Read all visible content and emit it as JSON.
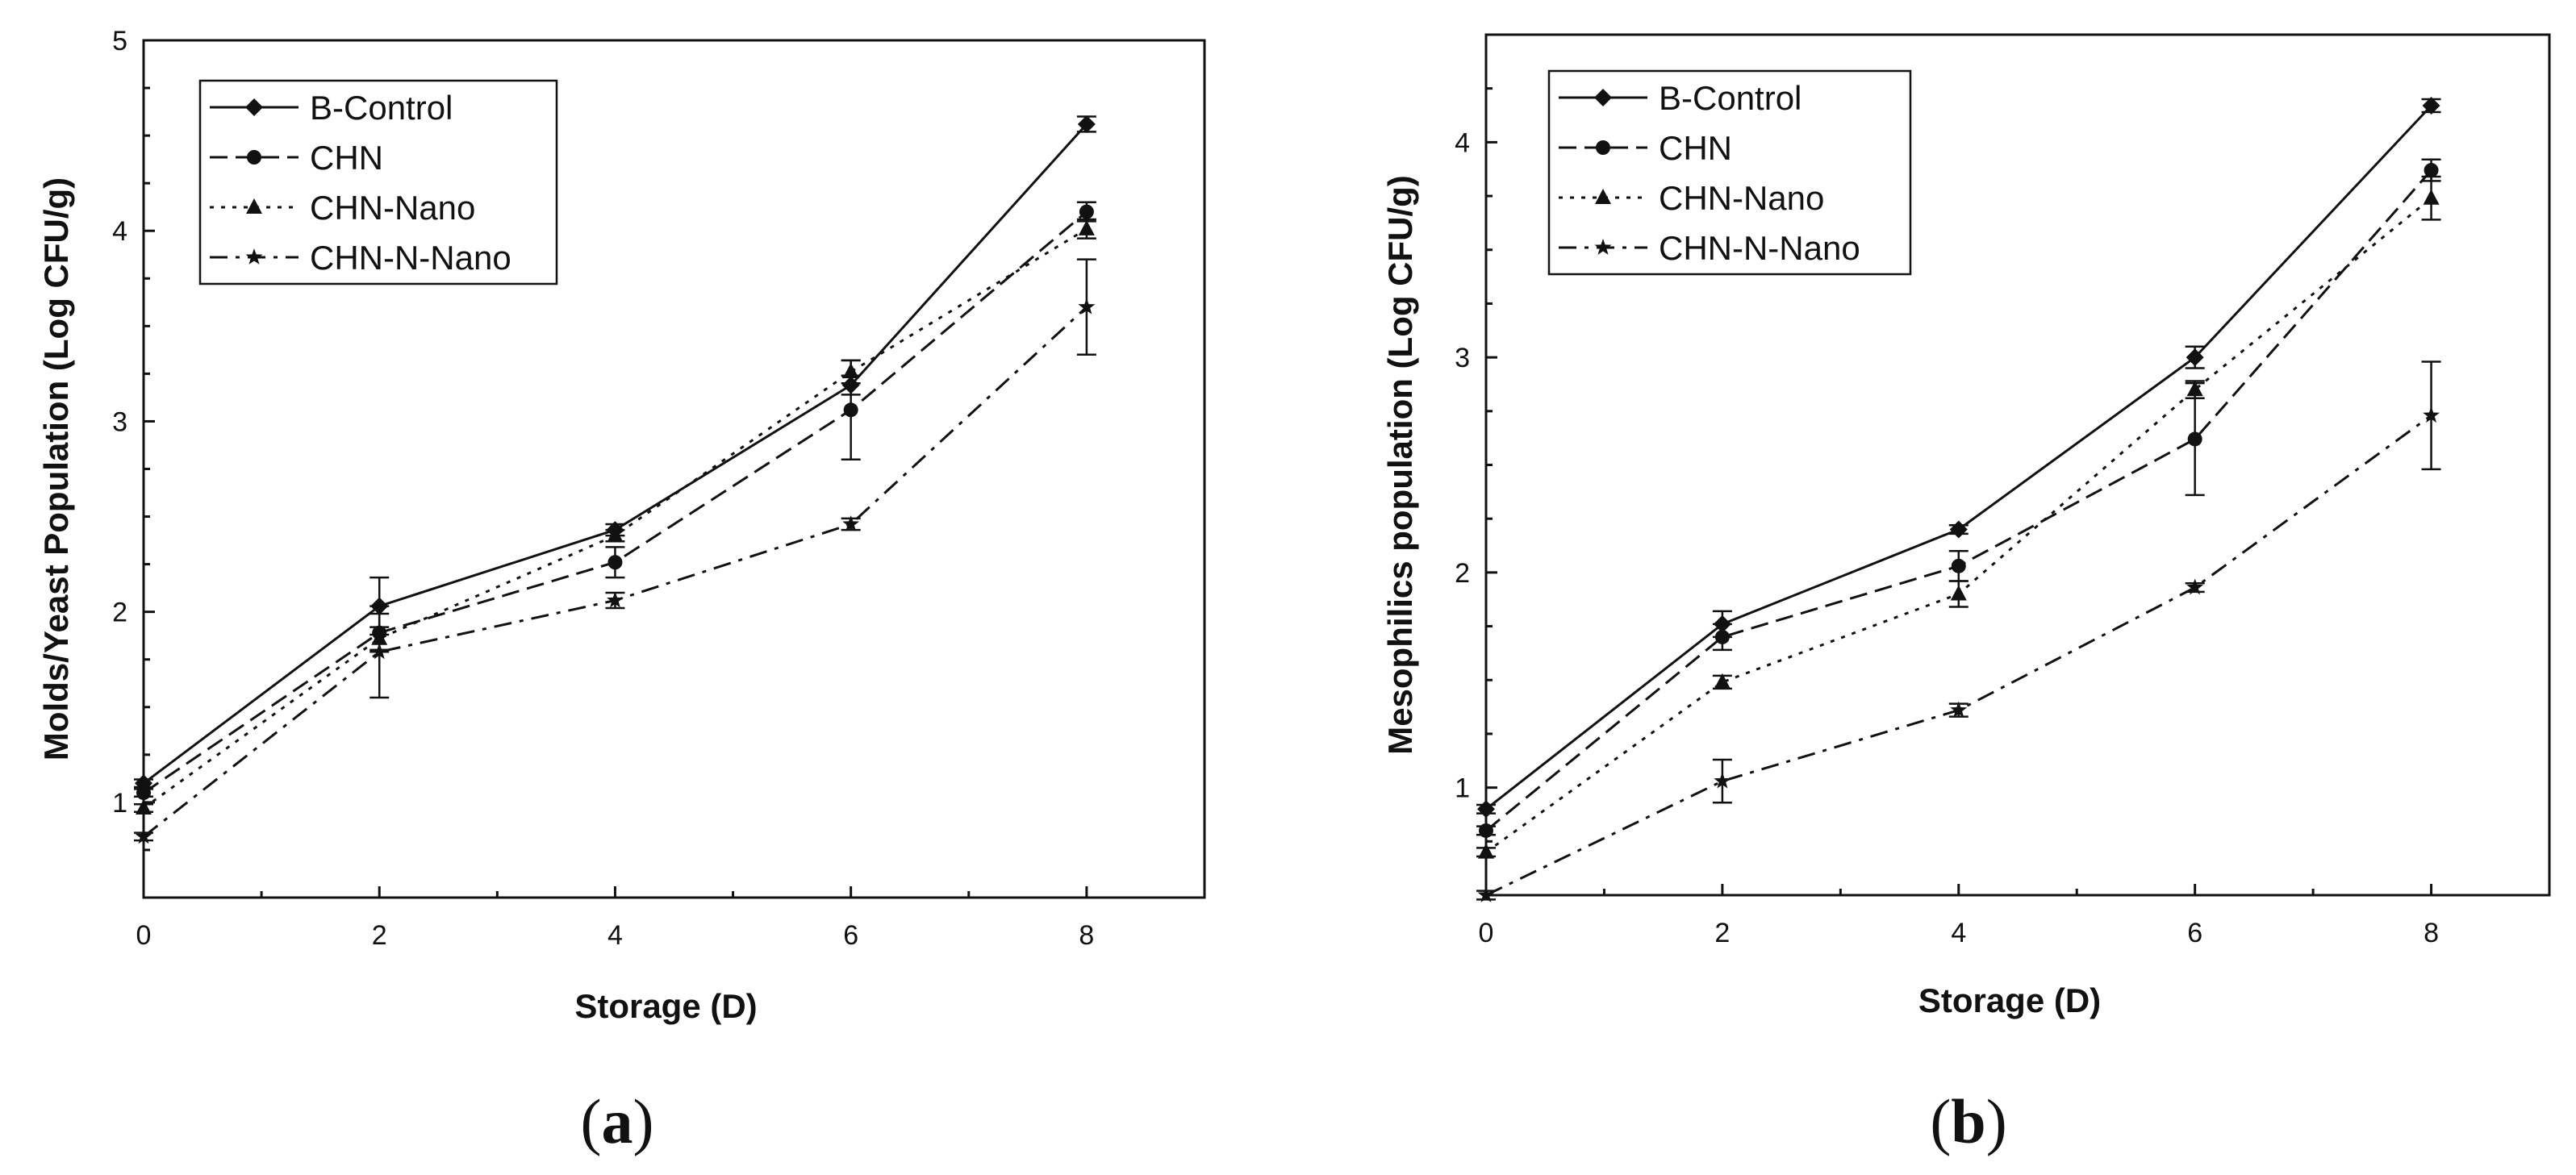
{
  "chart_data": [
    {
      "type": "line",
      "panel_label": "(a)",
      "panel_letter": "a",
      "xlabel": "Storage (D)",
      "ylabel": "Molds/Yeast Population (Log CFU/g)",
      "xlim": [
        0,
        9
      ],
      "ylim": [
        0.5,
        5
      ],
      "x_ticks": [
        0,
        2,
        4,
        6,
        8
      ],
      "y_ticks": [
        1,
        2,
        3,
        4,
        5
      ],
      "grid": false,
      "legend_position": "top-left",
      "x": [
        0,
        2,
        4,
        6,
        8
      ],
      "series": [
        {
          "name": "B-Control",
          "marker": "diamond",
          "dash": "solid",
          "values": [
            1.1,
            2.03,
            2.43,
            3.19,
            4.56
          ],
          "errors": [
            0.02,
            0.15,
            0.03,
            0.05,
            0.04
          ]
        },
        {
          "name": "CHN",
          "marker": "circle",
          "dash": "dashed",
          "values": [
            1.05,
            1.89,
            2.26,
            3.06,
            4.1
          ],
          "errors": [
            0.02,
            0.1,
            0.08,
            0.26,
            0.05
          ]
        },
        {
          "name": "CHN-Nano",
          "marker": "triangle",
          "dash": "dotted",
          "values": [
            0.97,
            1.86,
            2.4,
            3.26,
            4.01
          ],
          "errors": [
            0.02,
            0.06,
            0.03,
            0.06,
            0.05
          ]
        },
        {
          "name": "CHN-N-Nano",
          "marker": "star",
          "dash": "dashdot",
          "values": [
            0.82,
            1.79,
            2.06,
            2.46,
            3.6
          ],
          "errors": [
            0.02,
            0.24,
            0.04,
            0.03,
            0.25
          ]
        }
      ]
    },
    {
      "type": "line",
      "panel_label": "(b)",
      "panel_letter": "b",
      "xlabel": "Storage (D)",
      "ylabel": "Mesophilics population (Log CFU/g)",
      "xlim": [
        0,
        9
      ],
      "ylim": [
        0.5,
        4.5
      ],
      "x_ticks": [
        0,
        2,
        4,
        6,
        8
      ],
      "y_ticks": [
        1,
        2,
        3,
        4
      ],
      "grid": false,
      "legend_position": "top-left",
      "x": [
        0,
        2,
        4,
        6,
        8
      ],
      "series": [
        {
          "name": "B-Control",
          "marker": "diamond",
          "dash": "solid",
          "values": [
            0.9,
            1.76,
            2.2,
            3.0,
            4.17
          ],
          "errors": [
            0.02,
            0.06,
            0.02,
            0.05,
            0.03
          ]
        },
        {
          "name": "CHN",
          "marker": "circle",
          "dash": "dashed",
          "values": [
            0.8,
            1.7,
            2.03,
            2.62,
            3.87
          ],
          "errors": [
            0.02,
            0.06,
            0.07,
            0.26,
            0.05
          ]
        },
        {
          "name": "CHN-Nano",
          "marker": "triangle",
          "dash": "dotted",
          "values": [
            0.7,
            1.49,
            1.9,
            2.85,
            3.74
          ],
          "errors": [
            0.02,
            0.03,
            0.06,
            0.04,
            0.1
          ]
        },
        {
          "name": "CHN-N-Nano",
          "marker": "star",
          "dash": "dashdot",
          "values": [
            0.5,
            1.03,
            1.36,
            1.93,
            2.73
          ],
          "errors": [
            0.02,
            0.1,
            0.03,
            0.02,
            0.25
          ]
        }
      ]
    }
  ]
}
